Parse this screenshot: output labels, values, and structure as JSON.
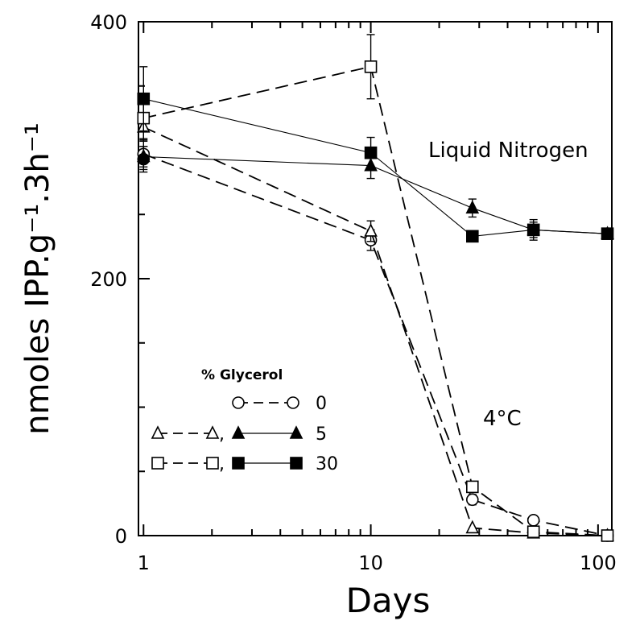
{
  "chart_data": {
    "type": "line",
    "xlabel": "Days",
    "ylabel": "nmoles IPP.g⁻¹.3h⁻¹",
    "x_scale": "log",
    "xlim": [
      0.95,
      115
    ],
    "ylim": [
      0,
      400
    ],
    "x_ticks": [
      1,
      10,
      100
    ],
    "x_tick_labels": [
      "1",
      "10",
      "100"
    ],
    "y_ticks": [
      0,
      200,
      400
    ],
    "y_tick_labels": [
      "0",
      "200",
      "400"
    ],
    "annotations": [
      "Liquid Nitrogen",
      "4°C"
    ],
    "legend": {
      "title": "% Glycerol",
      "placement": "lower-left",
      "entries": [
        {
          "label": "0",
          "markers": [
            "open-circle"
          ]
        },
        {
          "label": "5",
          "markers": [
            "open-triangle",
            "filled-triangle"
          ]
        },
        {
          "label": "30",
          "markers": [
            "open-square",
            "filled-square"
          ]
        }
      ]
    },
    "series": [
      {
        "name": "0",
        "marker": "open-circle",
        "line": "dashed",
        "group": "4°C",
        "x": [
          1,
          10,
          28,
          52,
          110
        ],
        "y": [
          297,
          230,
          28,
          12,
          0
        ],
        "err": [
          12,
          8,
          4,
          3,
          2
        ]
      },
      {
        "name": "5",
        "marker": "open-triangle",
        "line": "dashed",
        "group": "4°C",
        "x": [
          1,
          10,
          28,
          52,
          110
        ],
        "y": [
          318,
          237,
          6,
          2,
          0
        ],
        "err": [
          10,
          8,
          3,
          2,
          2
        ]
      },
      {
        "name": "30",
        "marker": "open-square",
        "line": "dashed",
        "group": "4°C",
        "x": [
          1,
          10,
          28,
          52,
          110
        ],
        "y": [
          325,
          365,
          38,
          3,
          0
        ],
        "err": [
          18,
          25,
          4,
          2,
          2
        ]
      },
      {
        "name": "5",
        "marker": "filled-triangle",
        "line": "solid",
        "group": "Liquid Nitrogen",
        "x": [
          1,
          10,
          28,
          52,
          110
        ],
        "y": [
          295,
          288,
          255,
          238,
          235
        ],
        "err": [
          8,
          10,
          7,
          6,
          3
        ]
      },
      {
        "name": "30",
        "marker": "filled-square",
        "line": "solid",
        "group": "Liquid Nitrogen",
        "x": [
          1,
          10,
          28,
          52,
          110
        ],
        "y": [
          340,
          298,
          233,
          238,
          235
        ],
        "err": [
          25,
          12,
          4,
          8,
          3
        ]
      },
      {
        "name": "0",
        "marker": "filled-circle",
        "line": "solid",
        "group": "Liquid Nitrogen",
        "x": [
          1
        ],
        "y": [
          293
        ],
        "err": [
          10
        ]
      }
    ]
  }
}
